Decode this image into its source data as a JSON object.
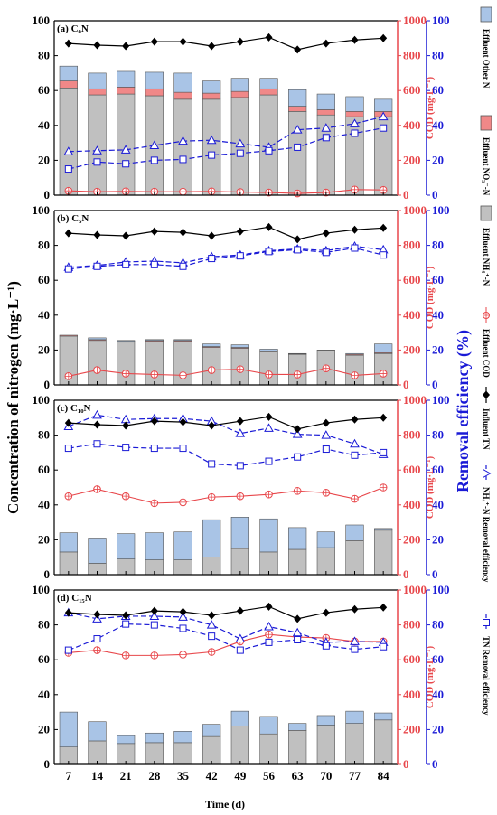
{
  "chart_data": {
    "type": "bar",
    "x": [
      7,
      14,
      21,
      28,
      35,
      42,
      49,
      56,
      63,
      70,
      77,
      84
    ],
    "xlabel": "Time (d)",
    "ylabel_left": "Concentration of nitrogen (mg·L⁻¹)",
    "ylabel_mid": "COD (mg·L⁻¹)",
    "ylabel_right": "Removal efficiency (%)",
    "ylim_left": [
      0,
      100
    ],
    "ylim_mid": [
      0,
      1000
    ],
    "ylim_right": [
      0,
      100
    ],
    "yticks_left": [
      "0",
      "20",
      "40",
      "60",
      "80",
      "100"
    ],
    "yticks_mid": [
      "0",
      "200",
      "400",
      "600",
      "800",
      "1000"
    ],
    "yticks_right": [
      "0",
      "20",
      "40",
      "60",
      "80",
      "100"
    ],
    "legend": [
      {
        "key": "other_n",
        "label": "Effluent Other N"
      },
      {
        "key": "no3",
        "label": "Effluent NO₃⁻-N"
      },
      {
        "key": "nh4",
        "label": "Effluent NH₄⁺-N"
      },
      {
        "key": "cod",
        "label": "Effluent COD"
      },
      {
        "key": "influent_tn",
        "label": "Influent TN"
      },
      {
        "key": "nh4_re",
        "label": "NH₄⁺-N Removal efficiency"
      },
      {
        "key": "tn_re",
        "label": "TN Removal efficiency"
      }
    ],
    "colors": {
      "other_n": "#a9c4e6",
      "no3": "#f08888",
      "nh4": "#c0c0c0",
      "cod": "#e8474b",
      "influent_tn": "#000000",
      "removal": "#1a1ad6"
    },
    "panels": [
      {
        "label": "(a) C₀N",
        "nh4": [
          61.5,
          57.5,
          58,
          57,
          55,
          55,
          56,
          57.5,
          48,
          46,
          45,
          45
        ],
        "no3": [
          4,
          3.5,
          4,
          4,
          4,
          3.5,
          3.5,
          3.5,
          3,
          3,
          3,
          3
        ],
        "other_n": [
          8.5,
          9,
          9,
          9.5,
          11,
          7,
          7.5,
          6,
          9.5,
          9,
          8.5,
          7
        ],
        "influent_tn": [
          87,
          86,
          85.5,
          88,
          88,
          85.5,
          88,
          90.5,
          83.5,
          87,
          89,
          90
        ],
        "cod": [
          25,
          20,
          22,
          20,
          20,
          22,
          18,
          15,
          10,
          15,
          32,
          30
        ],
        "nh4_re": [
          25,
          25.5,
          26,
          28.5,
          31,
          31.5,
          29.5,
          27.5,
          37.5,
          38.5,
          41,
          45
        ],
        "tn_re": [
          15,
          19,
          18,
          20,
          20.5,
          23,
          24,
          25.5,
          27.5,
          33,
          35.5,
          38.5
        ]
      },
      {
        "label": "(b) C₅N",
        "nh4": [
          28,
          25.5,
          24.5,
          25,
          25,
          21.5,
          21,
          19,
          17.5,
          19.5,
          17,
          18
        ],
        "no3": [
          0.5,
          0.5,
          0.5,
          0.5,
          0.5,
          0.5,
          0.5,
          0.5,
          0.3,
          0.3,
          0.5,
          0.5
        ],
        "other_n": [
          0,
          1,
          0.5,
          0.5,
          0.5,
          1.5,
          1.5,
          1,
          0.2,
          0.2,
          0.5,
          5
        ],
        "influent_tn": [
          87,
          86,
          85.5,
          88,
          87.5,
          85.5,
          88,
          90.5,
          83.5,
          87,
          89,
          90
        ],
        "cod": [
          50,
          85,
          65,
          60,
          55,
          85,
          90,
          60,
          60,
          95,
          55,
          65
        ],
        "nh4_re": [
          67.5,
          68.5,
          70.5,
          71,
          70,
          73.5,
          74.5,
          77,
          78,
          77,
          79.5,
          77.5
        ],
        "tn_re": [
          66.5,
          68,
          69,
          69,
          68,
          72.5,
          74,
          76.5,
          77.5,
          76,
          78.5,
          74.5
        ]
      },
      {
        "label": "(c) C₁₀N",
        "nh4": [
          13,
          6.5,
          9,
          8.5,
          8.5,
          10,
          15,
          13,
          14.5,
          15.5,
          19.5,
          25.5
        ],
        "no3": [
          0,
          0,
          0,
          0,
          0,
          0,
          0,
          0,
          0,
          0,
          0,
          0
        ],
        "other_n": [
          11,
          14.5,
          14.5,
          15.5,
          16,
          21.5,
          18,
          19,
          12.5,
          9,
          9,
          1
        ],
        "influent_tn": [
          87,
          86,
          85.5,
          88,
          87.5,
          85.5,
          88,
          90.5,
          83.5,
          87,
          89,
          90
        ],
        "cod": [
          450,
          490,
          450,
          410,
          415,
          445,
          450,
          460,
          480,
          470,
          435,
          500
        ],
        "nh4_re": [
          85,
          91.5,
          89,
          89.5,
          89.5,
          88,
          81,
          84,
          80.5,
          80,
          75,
          69
        ],
        "tn_re": [
          72.5,
          75,
          73,
          72.5,
          72.5,
          63.5,
          62.5,
          65,
          67.5,
          72,
          68.5,
          70
        ]
      },
      {
        "label": "(d) C₁₅N",
        "nh4": [
          10,
          13.5,
          12,
          12.5,
          12.5,
          16,
          22,
          17.5,
          19.5,
          22.5,
          23.5,
          25.5
        ],
        "no3": [
          0,
          0,
          0,
          0,
          0,
          0,
          0,
          0,
          0,
          0,
          0,
          0
        ],
        "other_n": [
          20,
          11,
          4.5,
          5.5,
          6.5,
          7,
          8.5,
          10,
          4,
          5.5,
          7,
          4
        ],
        "influent_tn": [
          87,
          86,
          85.5,
          88,
          87.5,
          85.5,
          88,
          90.5,
          83.5,
          87,
          89,
          90
        ],
        "cod": [
          640,
          655,
          625,
          625,
          630,
          645,
          705,
          745,
          730,
          725,
          705,
          705
        ],
        "nh4_re": [
          87,
          83.5,
          85,
          85,
          84.5,
          80,
          72,
          79,
          75.5,
          70,
          70.5,
          70
        ],
        "tn_re": [
          65.5,
          72,
          80.5,
          80,
          78,
          73.5,
          65.5,
          70,
          71.5,
          68,
          66,
          67.5
        ]
      }
    ]
  }
}
